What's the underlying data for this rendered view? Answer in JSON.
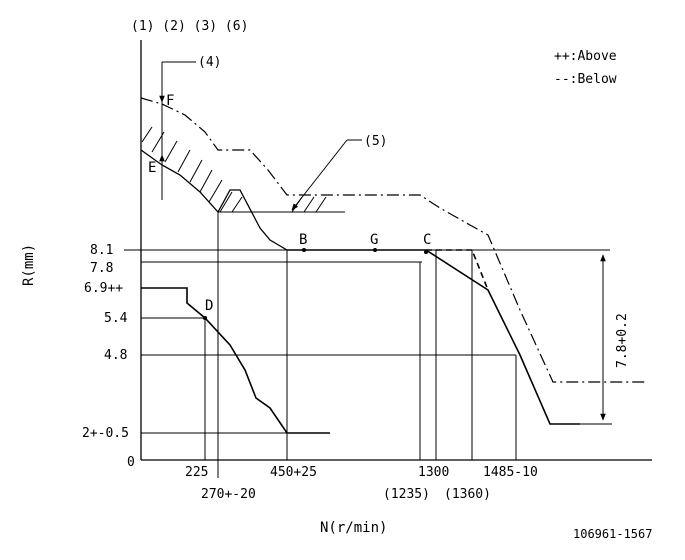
{
  "colors": {
    "ink": "#000000",
    "background": "#ffffff"
  },
  "top_labels": "(1) (2) (3) (6)",
  "legend": {
    "above": "++:Above",
    "below": "--:Below"
  },
  "callouts": {
    "c4": "(4)",
    "c5": "(5)"
  },
  "point_labels": {
    "F": "F",
    "E": "E",
    "B": "B",
    "G": "G",
    "C": "C",
    "D": "D"
  },
  "y_ticks": [
    "8.1",
    "7.8",
    "6.9++",
    "5.4",
    "4.8",
    "2+-0.5",
    "0"
  ],
  "x_ticks_upper": [
    "225",
    "450+25",
    "1300",
    "1485-10"
  ],
  "x_ticks_lower": [
    "270+-20",
    "(1235)",
    "(1360)"
  ],
  "y_axis_label": "R(mm)",
  "x_axis_label": "N(r/min)",
  "dimension_label": "7.8+0.2",
  "doc_id": "106961-1567"
}
